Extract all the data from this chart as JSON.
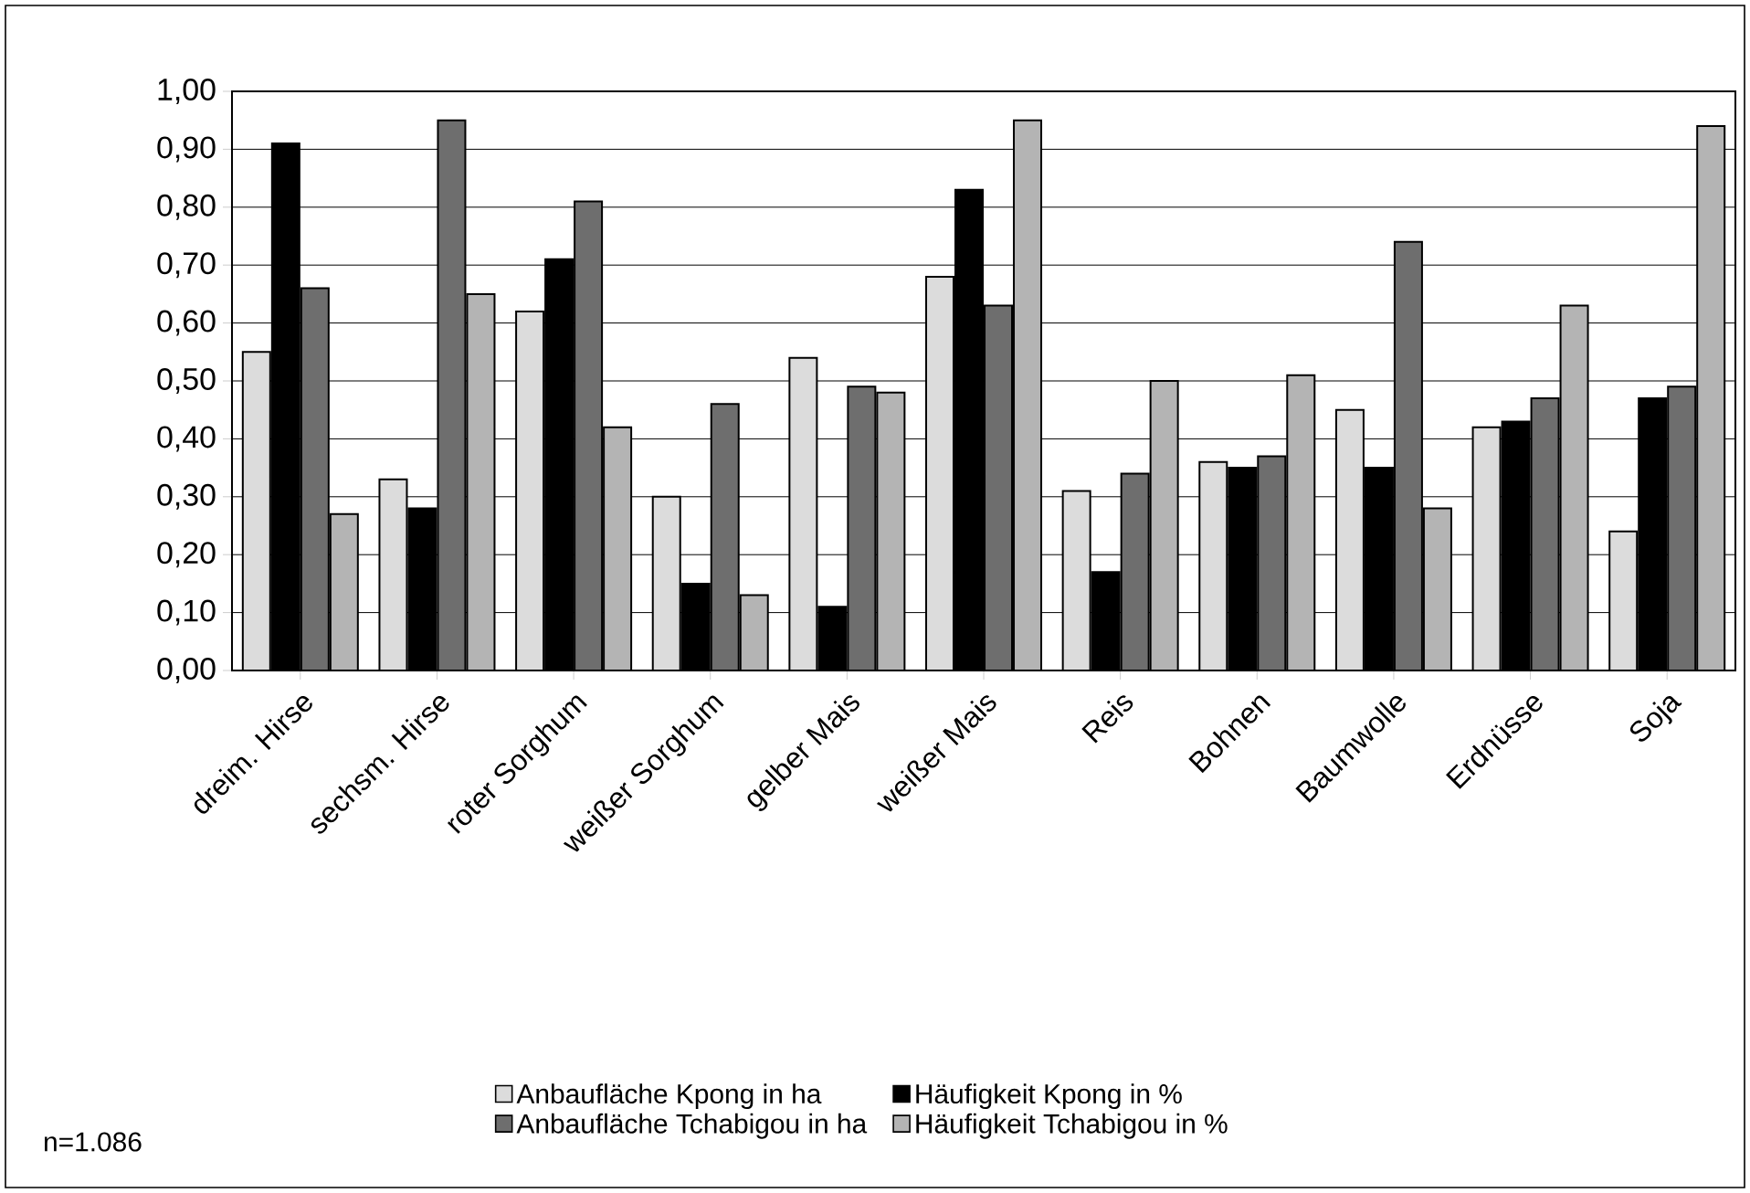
{
  "chart_data": {
    "type": "bar",
    "categories": [
      "dreim. Hirse",
      "sechsm. Hirse",
      "roter Sorghum",
      "weißer Sorghum",
      "gelber Mais",
      "weißer Mais",
      "Reis",
      "Bohnen",
      "Baumwolle",
      "Erdnüsse",
      "Soja"
    ],
    "series": [
      {
        "name": "Anbaufläche Kpong in ha",
        "color": "#dcdcdc",
        "values": [
          0.55,
          0.33,
          0.62,
          0.3,
          0.54,
          0.68,
          0.31,
          0.36,
          0.45,
          0.42,
          0.24
        ]
      },
      {
        "name": "Häufigkeit Kpong in %",
        "color": "#000000",
        "values": [
          0.91,
          0.28,
          0.71,
          0.15,
          0.11,
          0.83,
          0.17,
          0.35,
          0.35,
          0.43,
          0.47
        ]
      },
      {
        "name": "Anbaufläche Tchabigou in ha",
        "color": "#6e6e6e",
        "values": [
          0.66,
          0.95,
          0.81,
          0.46,
          0.49,
          0.63,
          0.34,
          0.37,
          0.74,
          0.47,
          0.49
        ]
      },
      {
        "name": "Häufigkeit Tchabigou in %",
        "color": "#b4b4b4",
        "values": [
          0.27,
          0.65,
          0.42,
          0.13,
          0.48,
          0.95,
          0.5,
          0.51,
          0.28,
          0.63,
          0.94
        ]
      }
    ],
    "ylim": [
      0,
      1
    ],
    "yticks": [
      {
        "value": 0,
        "label": "0,00"
      },
      {
        "value": 0.1,
        "label": "0,10"
      },
      {
        "value": 0.2,
        "label": "0,20"
      },
      {
        "value": 0.3,
        "label": "0,30"
      },
      {
        "value": 0.4,
        "label": "0,40"
      },
      {
        "value": 0.5,
        "label": "0,50"
      },
      {
        "value": 0.6,
        "label": "0,60"
      },
      {
        "value": 0.7,
        "label": "0,70"
      },
      {
        "value": 0.8,
        "label": "0,80"
      },
      {
        "value": 0.9,
        "label": "0,90"
      },
      {
        "value": 1,
        "label": "1,00"
      }
    ],
    "grid": "y",
    "legend": "bottom",
    "annotations": [
      "n=1.086"
    ]
  }
}
